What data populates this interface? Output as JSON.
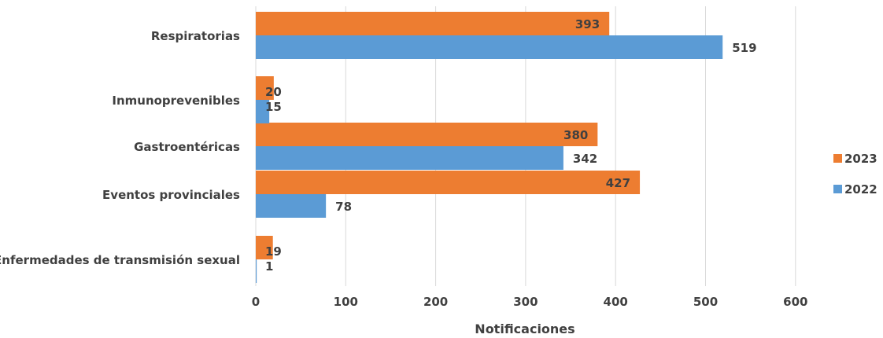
{
  "chart_data": {
    "type": "bar",
    "orientation": "horizontal",
    "categories": [
      "Respiratorias",
      "Inmunoprevenibles",
      "Gastroentéricas",
      "Eventos provinciales",
      "Enfermedades de transmisión sexual"
    ],
    "series": [
      {
        "name": "2023",
        "color": "#ED7D31",
        "values": [
          393,
          20,
          380,
          427,
          19
        ]
      },
      {
        "name": "2022",
        "color": "#5B9BD5",
        "values": [
          519,
          15,
          342,
          78,
          1
        ]
      }
    ],
    "xlabel": "Notificaciones",
    "ylabel": "",
    "xlim": [
      0,
      600
    ],
    "xticks": [
      0,
      100,
      200,
      300,
      400,
      500,
      600
    ],
    "grid": "vertical",
    "legend": "right",
    "data_labels": true
  }
}
